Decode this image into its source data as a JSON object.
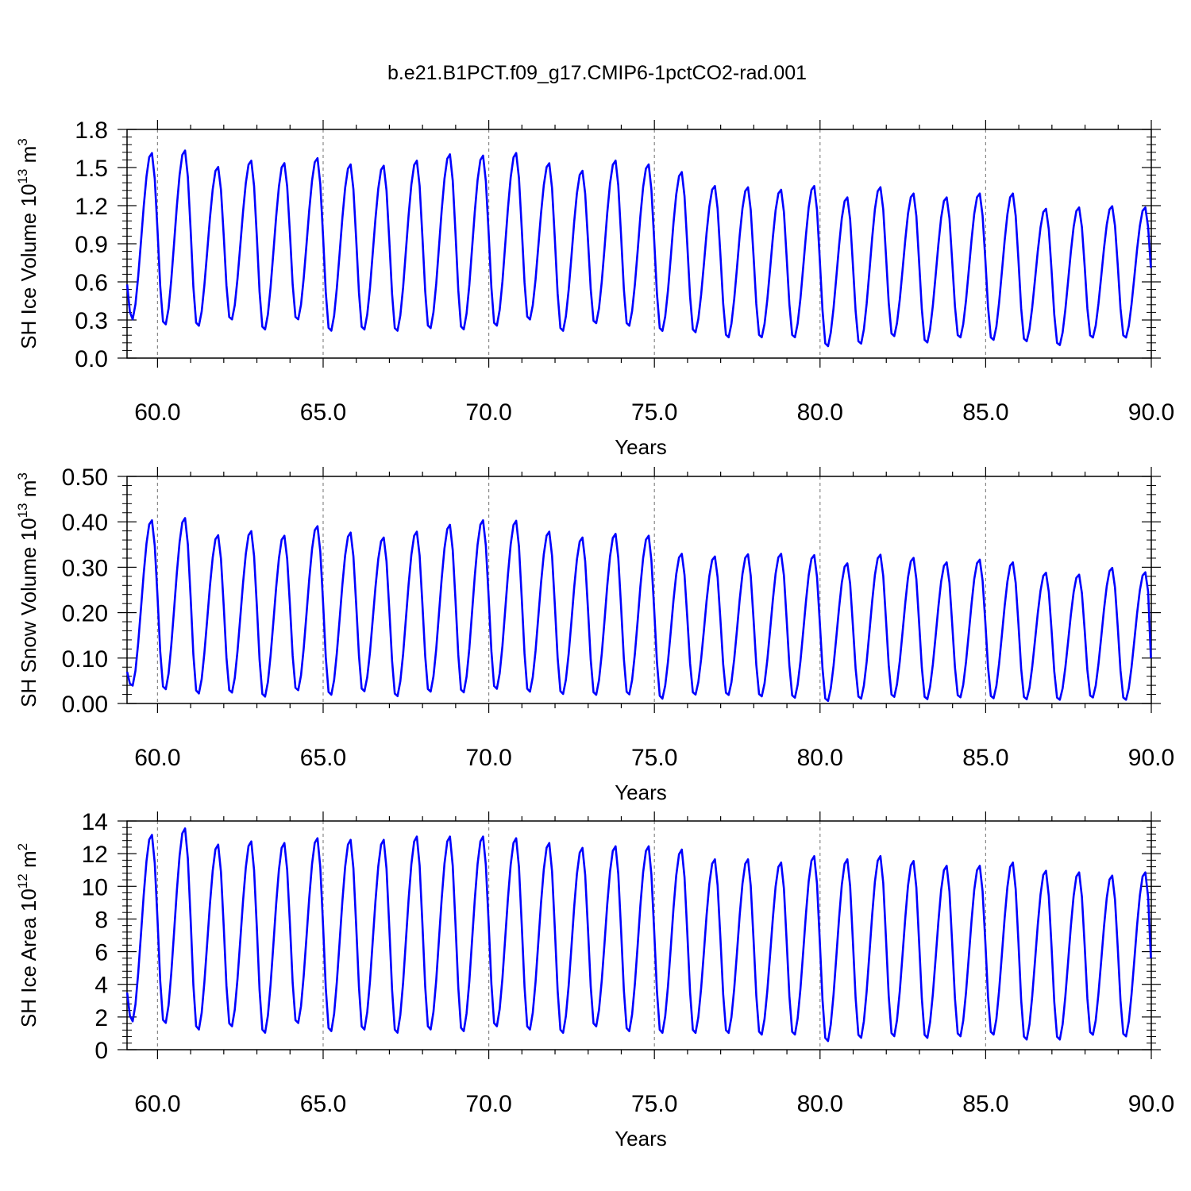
{
  "title": "b.e21.B1PCT.f09_g17.CMIP6-1pctCO2-rad.001",
  "style": {
    "line_color": "#0000ff",
    "grid_color": "#888888",
    "axis_color": "#000000"
  },
  "chart_data": [
    {
      "type": "line",
      "ylabel": "SH Ice Volume 10",
      "ylabel_exp": "13",
      "ylabel_unit": " m",
      "ylabel_unit_exp": "3",
      "xlabel": "Years",
      "xlim": [
        59.08,
        90.0
      ],
      "ylim": [
        0.0,
        1.8
      ],
      "xticks": [
        "60.0",
        "65.0",
        "70.0",
        "75.0",
        "80.0",
        "85.0",
        "90.0"
      ],
      "yticks": [
        "0.0",
        "0.3",
        "0.6",
        "0.9",
        "1.2",
        "1.5",
        "1.8"
      ],
      "grid": "vertical dashed at major x ticks",
      "series": [
        {
          "start_year": 59.083,
          "step_years": 0.0833,
          "maxima": [
            1.62,
            1.64,
            1.51,
            1.56,
            1.54,
            1.58,
            1.53,
            1.52,
            1.56,
            1.61,
            1.6,
            1.62,
            1.54,
            1.48,
            1.56,
            1.53,
            1.47,
            1.36,
            1.35,
            1.33,
            1.36,
            1.27,
            1.35,
            1.3,
            1.27,
            1.3,
            1.3,
            1.18,
            1.19,
            1.2,
            1.19
          ],
          "minima": [
            0.29,
            0.25,
            0.24,
            0.29,
            0.21,
            0.29,
            0.2,
            0.21,
            0.2,
            0.22,
            0.21,
            0.24,
            0.29,
            0.2,
            0.26,
            0.24,
            0.2,
            0.19,
            0.15,
            0.15,
            0.15,
            0.08,
            0.1,
            0.16,
            0.11,
            0.15,
            0.13,
            0.12,
            0.09,
            0.15,
            0.15
          ],
          "start_value": 0.58,
          "end_value": 0.71
        }
      ]
    },
    {
      "type": "line",
      "ylabel": "SH Snow Volume 10",
      "ylabel_exp": "13",
      "ylabel_unit": " m",
      "ylabel_unit_exp": "3",
      "xlabel": "Years",
      "xlim": [
        59.08,
        90.0
      ],
      "ylim": [
        0.0,
        0.5
      ],
      "xticks": [
        "60.0",
        "65.0",
        "70.0",
        "75.0",
        "80.0",
        "85.0",
        "90.0"
      ],
      "yticks": [
        "0.00",
        "0.10",
        "0.20",
        "0.30",
        "0.40",
        "0.50"
      ],
      "grid": "vertical dashed at major x ticks",
      "series": [
        {
          "start_year": 59.083,
          "step_years": 0.0833,
          "maxima": [
            0.405,
            0.41,
            0.372,
            0.381,
            0.371,
            0.392,
            0.378,
            0.367,
            0.38,
            0.395,
            0.405,
            0.404,
            0.38,
            0.367,
            0.375,
            0.371,
            0.331,
            0.325,
            0.33,
            0.331,
            0.328,
            0.31,
            0.329,
            0.322,
            0.312,
            0.318,
            0.312,
            0.289,
            0.285,
            0.3,
            0.29
          ],
          "minima": [
            0.035,
            0.027,
            0.018,
            0.02,
            0.011,
            0.025,
            0.015,
            0.023,
            0.012,
            0.022,
            0.02,
            0.028,
            0.022,
            0.017,
            0.015,
            0.016,
            0.007,
            0.016,
            0.015,
            0.012,
            0.009,
            0.002,
            0.007,
            0.011,
            0.006,
            0.01,
            0.008,
            0.006,
            0.005,
            0.01,
            0.005
          ],
          "start_value": 0.07,
          "end_value": 0.1
        }
      ]
    },
    {
      "type": "line",
      "ylabel": "SH Ice Area 10",
      "ylabel_exp": "12",
      "ylabel_unit": " m",
      "ylabel_unit_exp": "2",
      "xlabel": "Years",
      "xlim": [
        59.08,
        90.0
      ],
      "ylim": [
        0,
        14
      ],
      "xticks": [
        "60.0",
        "65.0",
        "70.0",
        "75.0",
        "80.0",
        "85.0",
        "90.0"
      ],
      "yticks": [
        "0",
        "2",
        "4",
        "6",
        "8",
        "10",
        "12",
        "14"
      ],
      "grid": "vertical dashed at major x ticks",
      "series": [
        {
          "start_year": 59.083,
          "step_years": 0.0833,
          "maxima": [
            13.2,
            13.6,
            12.6,
            12.8,
            12.7,
            13.0,
            12.9,
            12.9,
            13.1,
            13.1,
            13.1,
            13.0,
            12.7,
            12.4,
            12.5,
            12.5,
            12.3,
            11.7,
            11.7,
            11.5,
            11.9,
            11.7,
            11.9,
            11.6,
            11.3,
            11.3,
            11.5,
            11.0,
            10.9,
            10.7,
            10.9
          ],
          "minima": [
            1.6,
            1.5,
            1.1,
            1.3,
            0.9,
            1.5,
            1.0,
            1.1,
            0.9,
            1.1,
            1.0,
            1.3,
            1.1,
            0.9,
            1.3,
            1.0,
            0.9,
            0.9,
            0.9,
            0.8,
            0.8,
            0.4,
            0.6,
            0.7,
            0.6,
            0.7,
            0.8,
            0.5,
            0.5,
            0.8,
            0.7
          ],
          "start_value": 3.5,
          "end_value": 5.6
        }
      ]
    }
  ]
}
